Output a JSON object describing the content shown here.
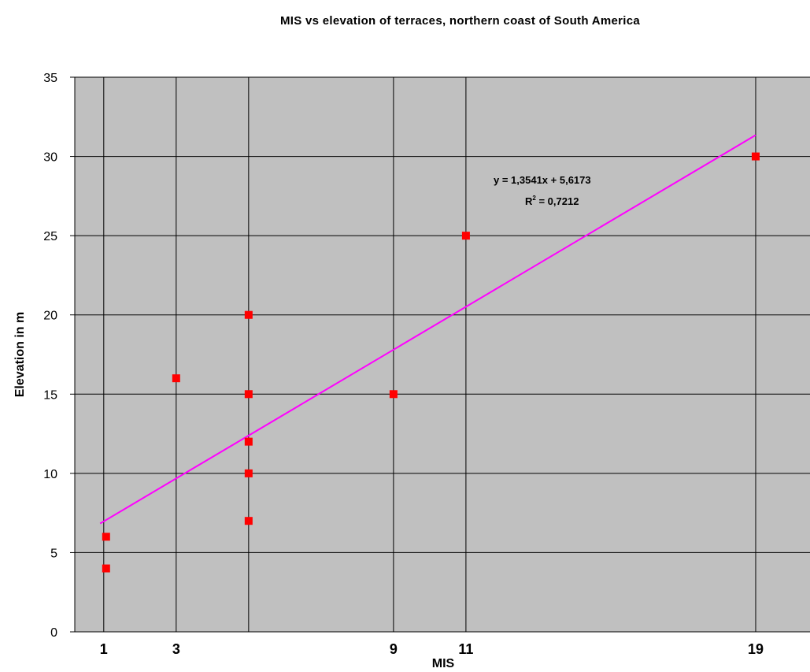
{
  "chart_data": {
    "type": "scatter",
    "title": "MIS vs elevation of terraces, northern coast of South America",
    "xlabel": "MIS",
    "ylabel": "Elevation in m",
    "xlim": [
      0.2,
      20.5
    ],
    "ylim": [
      0,
      35
    ],
    "y_ticks": [
      0,
      5,
      10,
      15,
      20,
      25,
      30,
      35
    ],
    "x_gridlines": [
      1,
      3,
      5,
      9,
      11,
      19
    ],
    "x_tick_labels": [
      {
        "x": 1,
        "label": "1"
      },
      {
        "x": 3,
        "label": "3"
      },
      {
        "x": 9,
        "label": "9"
      },
      {
        "x": 11,
        "label": "11"
      },
      {
        "x": 19,
        "label": "19"
      }
    ],
    "grid": true,
    "plot_background": "#c0c0c0",
    "series": [
      {
        "marker_color": "#ff0000",
        "marker": "square",
        "points": [
          {
            "x": 1,
            "y": 6
          },
          {
            "x": 1,
            "y": 4
          },
          {
            "x": 3,
            "y": 16
          },
          {
            "x": 5,
            "y": 20
          },
          {
            "x": 5,
            "y": 15
          },
          {
            "x": 5,
            "y": 12
          },
          {
            "x": 5,
            "y": 10
          },
          {
            "x": 5,
            "y": 7
          },
          {
            "x": 9,
            "y": 15
          },
          {
            "x": 11,
            "y": 25
          },
          {
            "x": 19,
            "y": 30
          }
        ]
      }
    ],
    "trendline": {
      "type": "linear",
      "slope": 1.3541,
      "intercept": 5.6173,
      "x_range": [
        0.9,
        19
      ],
      "color": "#ff00ff",
      "equation_text": "y = 1,3541x + 5,6173",
      "r2_prefix": "R",
      "r2_suffix": " = 0,7212"
    }
  }
}
